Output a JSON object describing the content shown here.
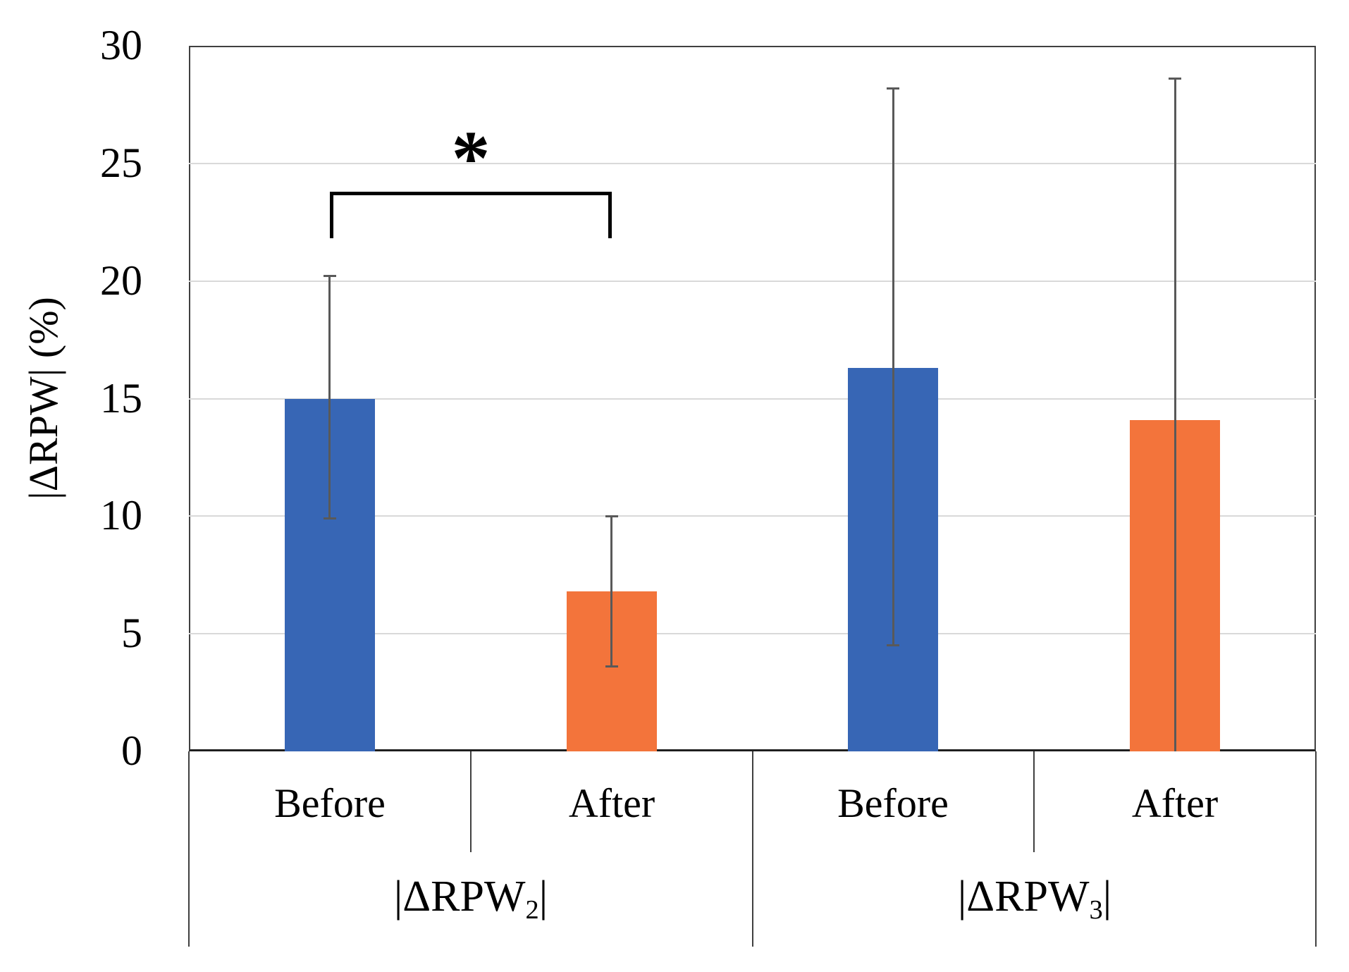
{
  "chart_data": {
    "type": "bar",
    "title": "",
    "ylabel": "|ΔRPW| (%)",
    "ylim": [
      0,
      30
    ],
    "yticks": [
      0,
      5,
      10,
      15,
      20,
      25,
      30
    ],
    "grid": "horizontal-light-gray",
    "legend": "none",
    "x_axis_structure": "two-level category table: Before/After within each |ΔRPW| group",
    "groups": [
      {
        "label_prefix": "|ΔRPW",
        "label_sub": "2",
        "label_suffix": "|",
        "bars": [
          {
            "category": "Before",
            "value": 15.0,
            "err_low": 9.9,
            "err_high": 20.2,
            "color_key": "before",
            "cap_low": true,
            "cap_high": true
          },
          {
            "category": "After",
            "value": 6.8,
            "err_low": 3.6,
            "err_high": 10.0,
            "color_key": "after",
            "cap_low": true,
            "cap_high": true
          }
        ]
      },
      {
        "label_prefix": "|ΔRPW",
        "label_sub": "3",
        "label_suffix": "|",
        "bars": [
          {
            "category": "Before",
            "value": 16.3,
            "err_low": 4.5,
            "err_high": 28.2,
            "color_key": "before",
            "cap_low": true,
            "cap_high": true
          },
          {
            "category": "After",
            "value": 14.1,
            "err_low": 0.0,
            "err_high": 28.6,
            "color_key": "after",
            "cap_low": false,
            "cap_high": true
          }
        ]
      }
    ],
    "significance": {
      "symbol": "*",
      "between": [
        "|ΔRPW2| Before",
        "|ΔRPW2| After"
      ]
    },
    "colors": {
      "before": "#3766b5",
      "after": "#f3743b",
      "error_bar": "#595959",
      "gridline": "#d9d9d9",
      "plot_border": "#404040",
      "axis_baseline": "#1f1f1f",
      "bracket": "#000000",
      "text": "#000000"
    }
  }
}
